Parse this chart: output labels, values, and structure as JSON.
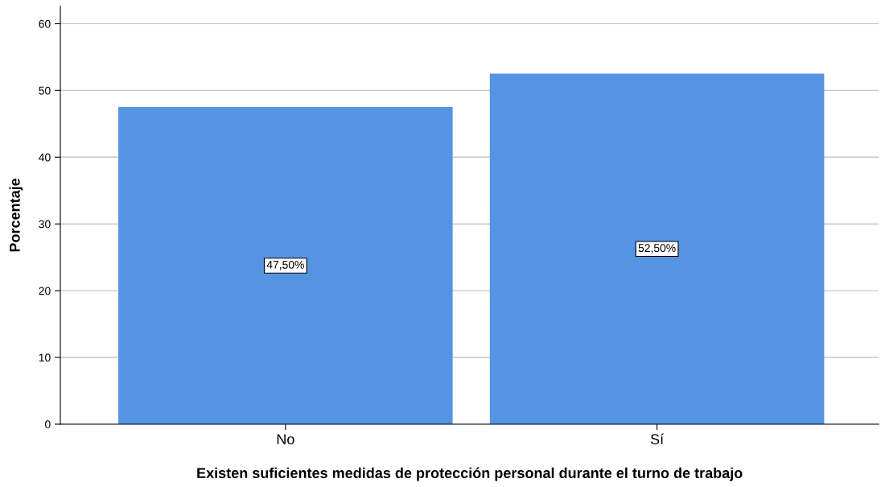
{
  "chart_data": {
    "type": "bar",
    "xlabel": "Existen suficientes medidas de protección personal durante el turno de trabajo",
    "ylabel": "Porcentaje",
    "categories": [
      "No",
      "Sí"
    ],
    "values": [
      47.5,
      52.5
    ],
    "value_labels": [
      "47,50%",
      "52,50%"
    ],
    "color": "#5594e3",
    "ylim": [
      0,
      62.6
    ],
    "yticks": [
      0,
      10,
      20,
      30,
      40,
      50,
      60
    ],
    "grid": "y",
    "legend": false
  }
}
